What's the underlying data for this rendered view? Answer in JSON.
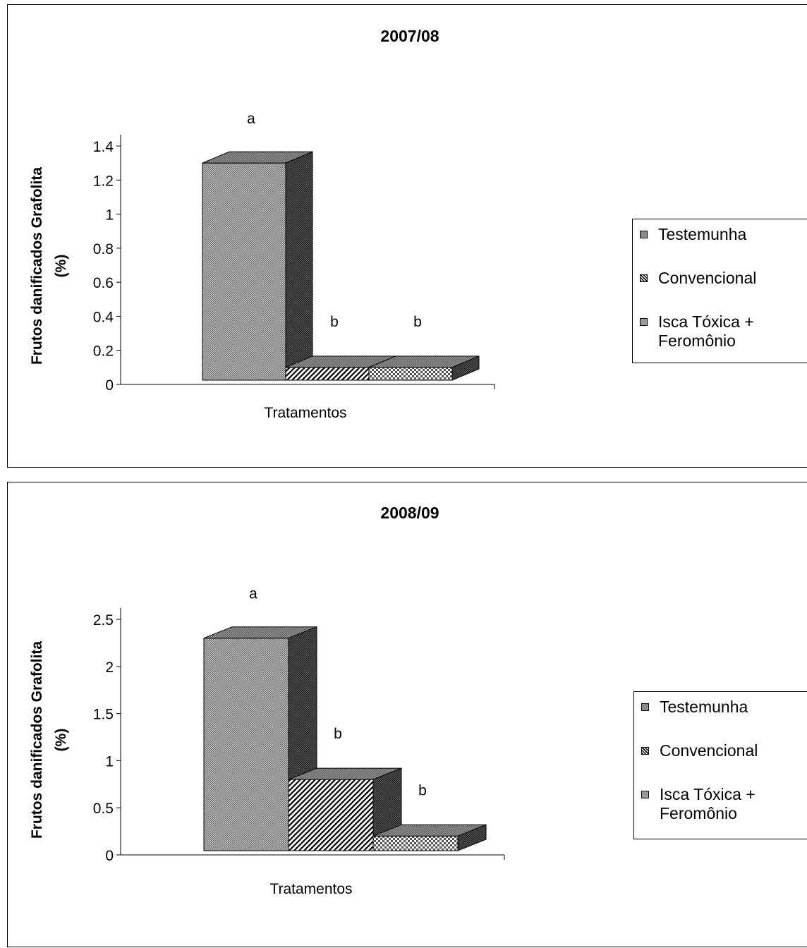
{
  "chart_data": [
    {
      "type": "bar",
      "title": "2007/08",
      "xlabel": "Tratamentos",
      "ylabel": "Frutos danificados Grafolita (%)",
      "ylim": [
        0,
        1.4
      ],
      "yticks": [
        "0",
        "0.2",
        "0.4",
        "0.6",
        "0.8",
        "1",
        "1.2",
        "1.4"
      ],
      "three_d": true,
      "grid": false,
      "legend_position": "right",
      "series": [
        {
          "name": "Testemunha",
          "values": [
            1.3
          ],
          "annotation": "a",
          "pattern": "dots",
          "color": "#8a8a8a"
        },
        {
          "name": "Convencional",
          "values": [
            0.1
          ],
          "annotation": "b",
          "pattern": "diagonal",
          "color": "#a0a0a0"
        },
        {
          "name": "Isca Tóxica + Feromônio",
          "values": [
            0.1
          ],
          "annotation": "b",
          "pattern": "checker",
          "color": "#b4b4b4"
        }
      ]
    },
    {
      "type": "bar",
      "title": "2008/09",
      "xlabel": "Tratamentos",
      "ylabel": "Frutos danificados Grafolita (%)",
      "ylim": [
        0,
        2.5
      ],
      "yticks": [
        "0",
        "0.5",
        "1",
        "1.5",
        "2",
        "2.5"
      ],
      "three_d": true,
      "grid": false,
      "legend_position": "right",
      "series": [
        {
          "name": "Testemunha",
          "values": [
            2.3
          ],
          "annotation": "a",
          "pattern": "dots",
          "color": "#8a8a8a"
        },
        {
          "name": "Convencional",
          "values": [
            0.8
          ],
          "annotation": "b",
          "pattern": "diagonal",
          "color": "#a0a0a0"
        },
        {
          "name": "Isca Tóxica + Feromônio",
          "values": [
            0.2
          ],
          "annotation": "b",
          "pattern": "checker",
          "color": "#b4b4b4"
        }
      ]
    }
  ]
}
